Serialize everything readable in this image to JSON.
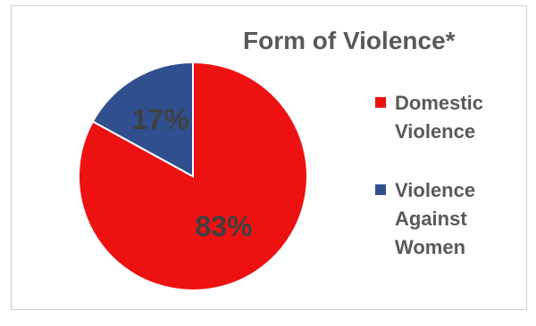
{
  "chart_data": {
    "type": "pie",
    "title": "Form of Violence*",
    "categories": [
      "Domestic Violence",
      "Violence Against Women"
    ],
    "values": [
      83,
      17
    ],
    "labels": [
      "83%",
      "17%"
    ],
    "colors": [
      "#ee1111",
      "#2f4f8f"
    ],
    "legend_position": "right"
  }
}
